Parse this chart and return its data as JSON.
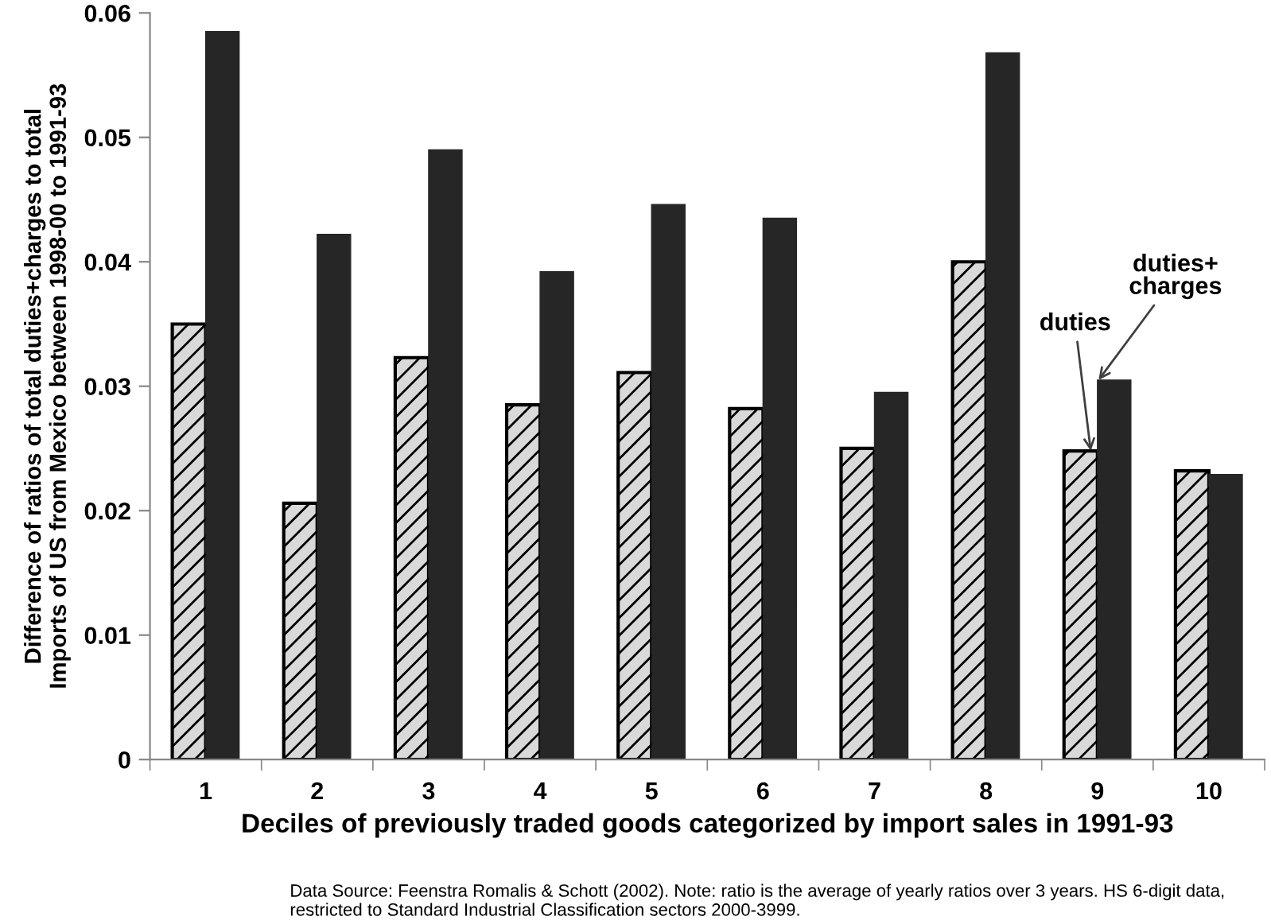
{
  "chart_data": {
    "type": "bar",
    "xlabel": "Deciles of previously traded goods categorized by import sales in 1991-93",
    "ylabel": "Difference of ratios of total duties+charges to total\nImports of US from Mexico between 1998-00 to 1991-93",
    "categories": [
      "1",
      "2",
      "3",
      "4",
      "5",
      "6",
      "7",
      "8",
      "9",
      "10"
    ],
    "series": [
      {
        "color": "#d9d9d9",
        "values": [
          0.035,
          0.0206,
          0.0323,
          0.0285,
          0.0311,
          0.0282,
          0.025,
          0.04,
          0.0248,
          0.0232
        ]
      },
      {
        "color": "#262626",
        "values": [
          0.0585,
          0.0422,
          0.049,
          0.0392,
          0.0446,
          0.0435,
          0.0295,
          0.0568,
          0.0305,
          0.0229
        ]
      }
    ],
    "ylim": [
      0,
      0.06
    ],
    "yticks": [
      0,
      0.01,
      0.02,
      0.03,
      0.04,
      0.05,
      0.06
    ],
    "grid": false,
    "legend": false,
    "annotations": [
      {
        "text": "duties",
        "x": "9",
        "y": 0.0248
      },
      {
        "text": "duties+\ncharges",
        "x": "9",
        "y": 0.0305
      },
      "Data Source: Feenstra Romalis & Schott (2002). Note: ratio is the average of yearly ratios over 3 years. HS 6-digit data, restricted to Standard Industrial Classification sectors 2000-3999."
    ]
  }
}
